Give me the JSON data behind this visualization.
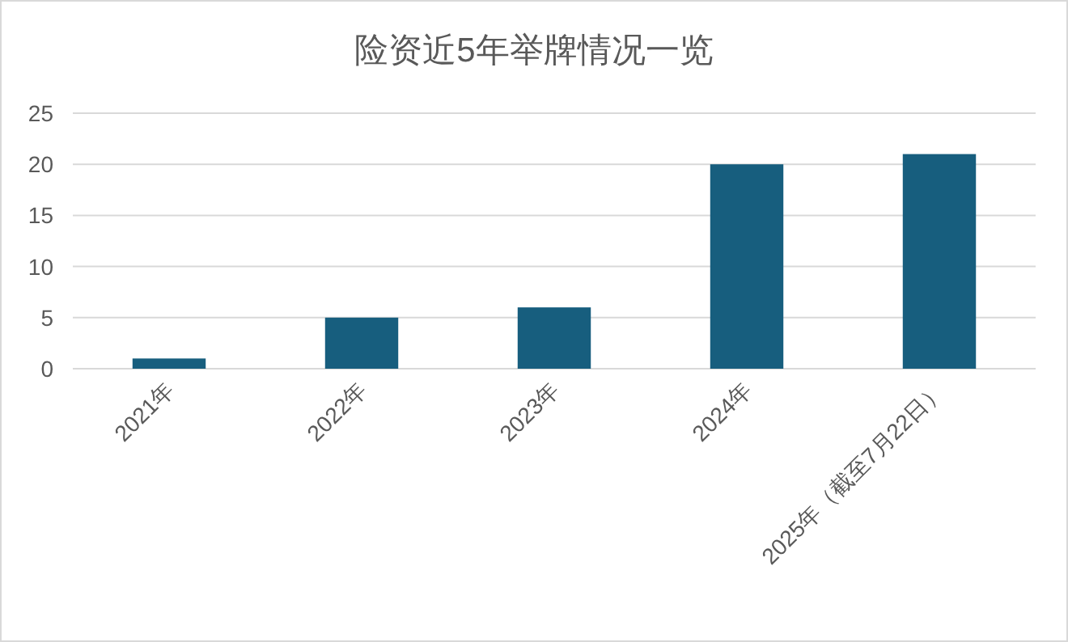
{
  "chart_data": {
    "type": "bar",
    "title": "险资近5年举牌情况一览",
    "categories": [
      "2021年",
      "2022年",
      "2023年",
      "2024年",
      "2025年（截至7月22日）"
    ],
    "values": [
      1,
      5,
      6,
      20,
      21
    ],
    "color": "#175e7e",
    "ylim": [
      0,
      25
    ],
    "yticks": [
      0,
      5,
      10,
      15,
      20,
      25
    ],
    "grid": "y"
  }
}
